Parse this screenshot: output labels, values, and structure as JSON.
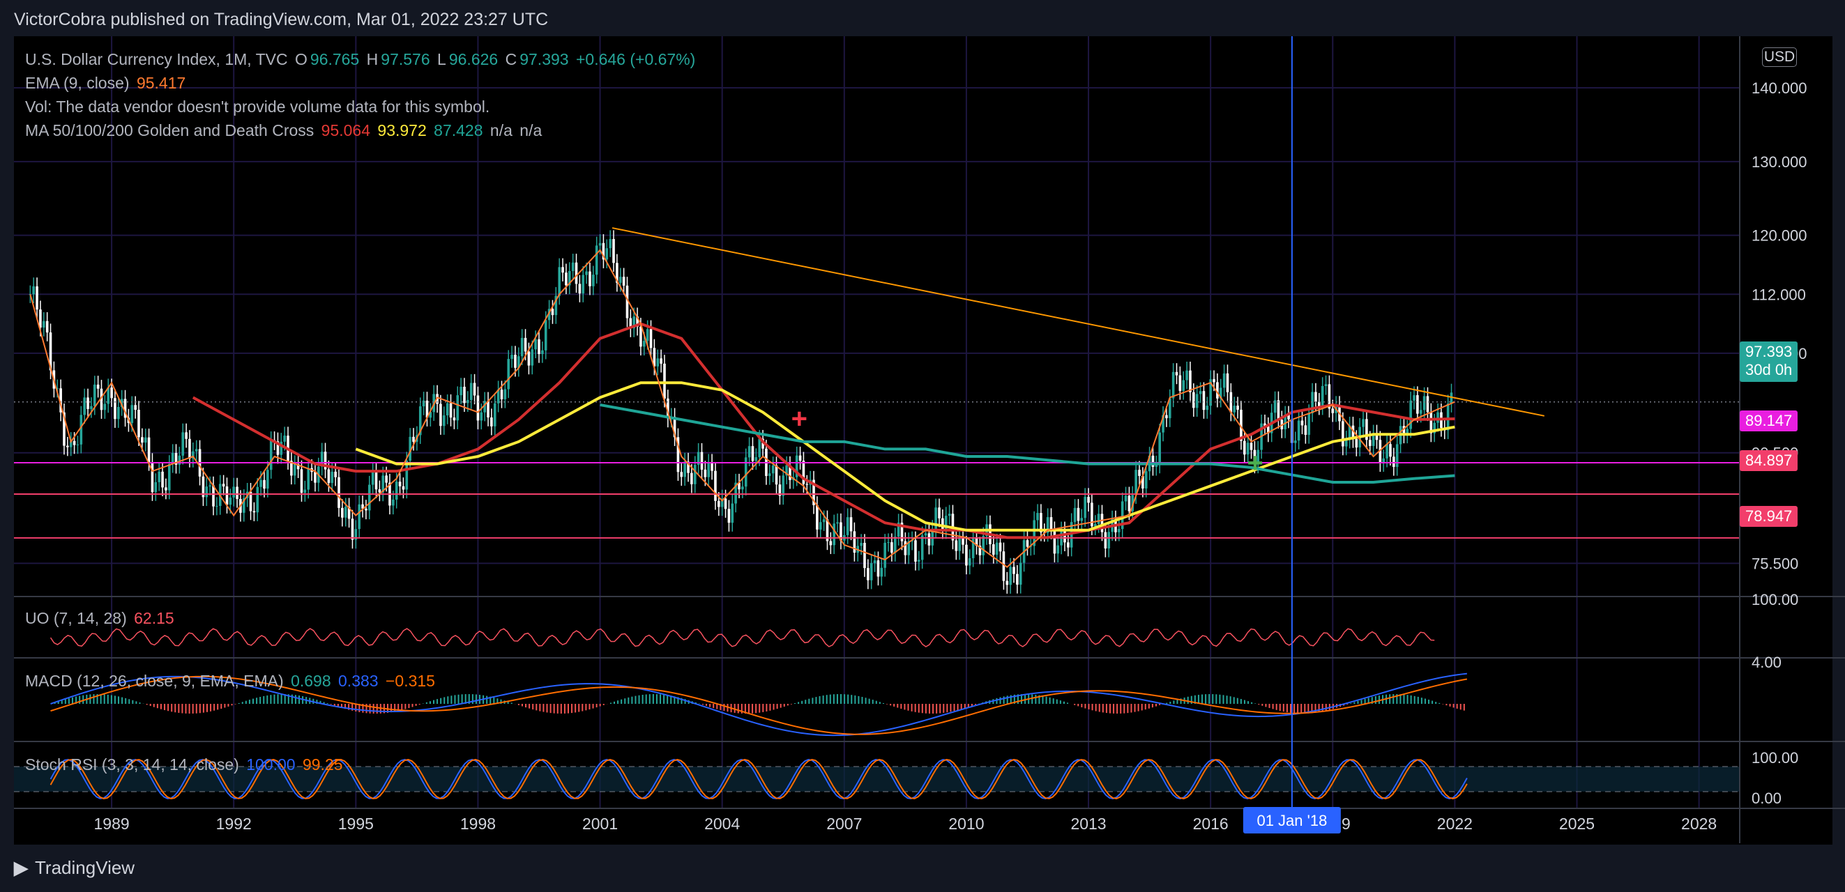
{
  "header": {
    "publisher": "VictorCobra published on TradingView.com, Mar 01, 2022 23:27 UTC"
  },
  "legend": {
    "symbol": "U.S. Dollar Currency Index, 1M, TVC",
    "o_label": "O",
    "o": "96.765",
    "h_label": "H",
    "h": "97.576",
    "l_label": "L",
    "l": "96.626",
    "c_label": "C",
    "c": "97.393",
    "change": "+0.646 (+0.67%)",
    "ema_label": "EMA (9, close)",
    "ema_value": "95.417",
    "vol_text": "Vol: The data vendor doesn't provide volume data for this symbol.",
    "ma_label": "MA 50/100/200 Golden and Death Cross",
    "ma50": "95.064",
    "ma100": "93.972",
    "ma200": "87.428",
    "na1": "n/a",
    "na2": "n/a",
    "uo_label": "UO (7, 14, 28)",
    "uo_value": "62.15",
    "macd_label": "MACD (12, 26, close, 9, EMA, EMA)",
    "macd_hist": "0.698",
    "macd_line": "0.383",
    "macd_signal": "−0.315",
    "stoch_label": "Stoch RSI (3, 3, 14, 14, close)",
    "stoch_k": "100.00",
    "stoch_d": "99.25"
  },
  "currency_button": "USD",
  "price_tags": {
    "last": "97.393",
    "countdown": "30d 0h",
    "level1": "89.147",
    "level2": "84.897",
    "level3": "78.947"
  },
  "y_axis_ticks": [
    "140.000",
    "130.000",
    "120.000",
    "112.000",
    "104.000",
    "90.500",
    "75.500"
  ],
  "indicator_ticks": {
    "uo": "100.00",
    "macd": "4.00",
    "stoch_top": "100.00",
    "stoch_bottom": "0.00"
  },
  "x_axis_ticks": [
    "1989",
    "1992",
    "1995",
    "1998",
    "2001",
    "2004",
    "2007",
    "2010",
    "2013",
    "2016",
    "2019",
    "2022",
    "2025",
    "2028"
  ],
  "crosshair_label": "01 Jan '18",
  "footer": {
    "brand": "TradingView"
  },
  "colors": {
    "candle_up": "#26a69a",
    "ema": "#ff7a30",
    "ma50": "#d32f2f",
    "ma100": "#ffeb3b",
    "ma200": "#1fa597",
    "level1": "#e91ee0",
    "level2": "#f23e6b",
    "level3": "#f23e6b",
    "trendline": "#ff9800",
    "crosshair": "#2962ff"
  },
  "chart_data": {
    "type": "line",
    "title": "U.S. Dollar Currency Index, 1M, TVC",
    "x": [
      1987,
      1988,
      1989,
      1990,
      1991,
      1992,
      1993,
      1994,
      1995,
      1996,
      1997,
      1998,
      1999,
      2000,
      2001,
      2002,
      2003,
      2004,
      2005,
      2006,
      2007,
      2008,
      2009,
      2010,
      2011,
      2012,
      2013,
      2014,
      2015,
      2016,
      2017,
      2018,
      2019,
      2020,
      2021,
      2022
    ],
    "series": [
      {
        "name": "DXY close",
        "values": [
          112,
          92,
          100,
          88,
          90,
          82,
          90,
          88,
          82,
          87,
          98,
          96,
          102,
          112,
          118,
          108,
          90,
          84,
          90,
          86,
          78,
          76,
          80,
          79,
          75,
          80,
          81,
          82,
          98,
          100,
          92,
          95,
          97,
          90,
          95,
          97.4
        ]
      },
      {
        "name": "MA 50",
        "values": [
          null,
          null,
          null,
          null,
          98,
          95,
          92,
          89,
          88,
          88,
          89,
          91,
          95,
          100,
          106,
          108,
          106,
          99,
          92,
          87,
          84,
          81,
          80,
          80,
          79,
          79,
          80,
          81,
          86,
          91,
          93,
          96,
          97,
          96,
          95,
          95.1
        ]
      },
      {
        "name": "MA 100",
        "values": [
          null,
          null,
          null,
          null,
          null,
          null,
          null,
          null,
          91,
          89,
          89,
          90,
          92,
          95,
          98,
          100,
          100,
          99,
          96,
          92,
          88,
          84,
          81,
          80,
          80,
          80,
          80,
          82,
          84,
          86,
          88,
          90,
          92,
          93,
          93,
          94.0
        ]
      },
      {
        "name": "MA 200",
        "values": [
          null,
          null,
          null,
          null,
          null,
          null,
          null,
          null,
          null,
          null,
          null,
          null,
          null,
          null,
          97,
          96,
          95,
          94,
          93,
          92,
          92,
          91,
          91,
          90,
          90,
          89.5,
          89,
          89,
          89,
          89,
          88.5,
          87.5,
          86.5,
          86.5,
          87,
          87.4
        ]
      }
    ],
    "levels": [
      89.147,
      84.897,
      78.947
    ],
    "ylim": [
      71,
      147
    ]
  }
}
